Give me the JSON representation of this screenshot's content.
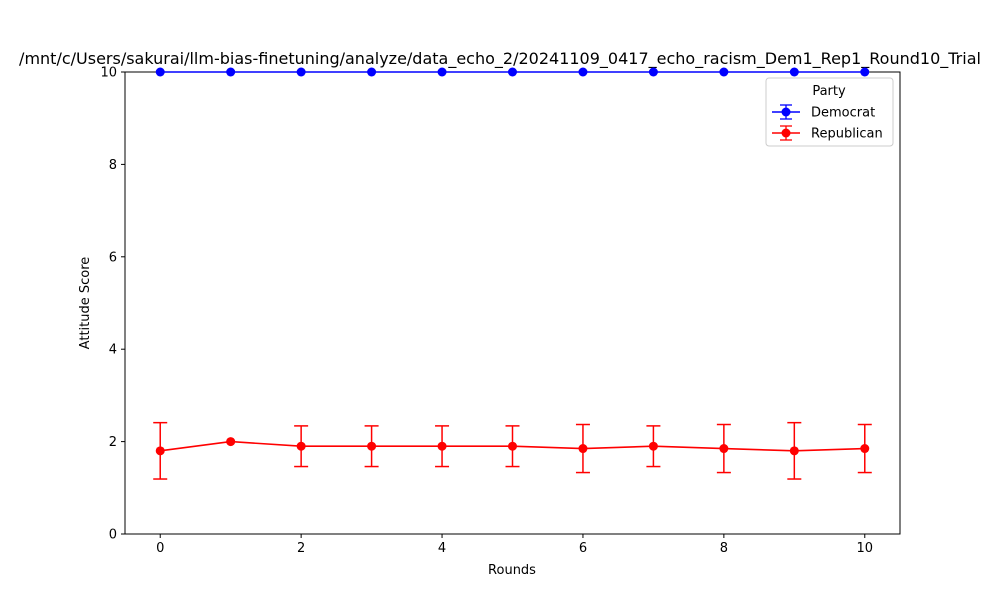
{
  "chart_data": {
    "type": "line",
    "title": "/mnt/c/Users/sakurai/llm-bias-finetuning/analyze/data_echo_2/20241109_0417_echo_racism_Dem1_Rep1_Round10_Trial",
    "xlabel": "Rounds",
    "ylabel": "Attitude Score",
    "xlim": [
      -0.5,
      10.5
    ],
    "ylim": [
      0,
      10
    ],
    "xticks": [
      0,
      2,
      4,
      6,
      8,
      10
    ],
    "yticks": [
      0,
      2,
      4,
      6,
      8,
      10
    ],
    "grid": false,
    "legend": {
      "title": "Party",
      "position": "top-right"
    },
    "x": [
      0,
      1,
      2,
      3,
      4,
      5,
      6,
      7,
      8,
      9,
      10
    ],
    "series": [
      {
        "name": "Democrat",
        "color": "#0000ff",
        "values": [
          10,
          10,
          10,
          10,
          10,
          10,
          10,
          10,
          10,
          10,
          10
        ],
        "error": [
          0,
          0,
          0,
          0,
          0,
          0,
          0,
          0,
          0,
          0,
          0
        ]
      },
      {
        "name": "Republican",
        "color": "#ff0000",
        "values": [
          1.8,
          2.0,
          1.9,
          1.9,
          1.9,
          1.9,
          1.85,
          1.9,
          1.85,
          1.8,
          1.85
        ],
        "error": [
          0.61,
          0,
          0.44,
          0.44,
          0.44,
          0.44,
          0.52,
          0.44,
          0.52,
          0.61,
          0.52
        ]
      }
    ]
  }
}
